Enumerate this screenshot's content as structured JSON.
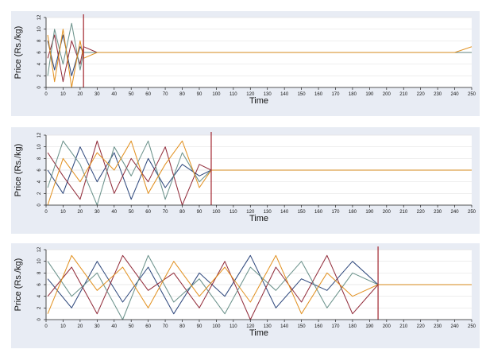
{
  "chart_data": [
    {
      "type": "line",
      "xlabel": "Time",
      "ylabel": "Price (Rs./kg)",
      "xlim": [
        0,
        250
      ],
      "ylim": [
        0,
        12
      ],
      "xticks": [
        0,
        10,
        20,
        30,
        40,
        50,
        60,
        70,
        80,
        90,
        100,
        110,
        120,
        130,
        140,
        150,
        160,
        170,
        180,
        190,
        200,
        210,
        220,
        230,
        240,
        250
      ],
      "yticks": [
        0,
        2,
        4,
        6,
        8,
        10,
        12
      ],
      "grid": "horizontal",
      "vline": {
        "x": 22,
        "color": "#a1242c"
      },
      "series": [
        {
          "color": "#1f3b73",
          "x": [
            1,
            5,
            10,
            15,
            20,
            22,
            30,
            40,
            60,
            80,
            100,
            120,
            140,
            160,
            180,
            200,
            220,
            240,
            250
          ],
          "values": [
            8,
            3,
            9,
            2,
            7,
            6,
            6,
            6,
            6,
            6,
            6,
            6,
            6,
            6,
            6,
            6,
            6,
            6,
            6
          ]
        },
        {
          "color": "#8a1d2c",
          "x": [
            1,
            5,
            10,
            15,
            20,
            22,
            30,
            40,
            60,
            80,
            100,
            120,
            140,
            160,
            180,
            200,
            220,
            240,
            250
          ],
          "values": [
            5,
            9,
            1,
            8,
            4,
            7,
            6,
            6,
            6,
            6,
            6,
            6,
            6,
            6,
            6,
            6,
            6,
            6,
            6
          ]
        },
        {
          "color": "#5f8a82",
          "x": [
            1,
            5,
            10,
            15,
            20,
            22,
            30,
            40,
            60,
            80,
            100,
            120,
            140,
            160,
            180,
            200,
            220,
            240,
            250
          ],
          "values": [
            2,
            10,
            4,
            11,
            3,
            6,
            6,
            6,
            6,
            6,
            6,
            6,
            6,
            6,
            6,
            6,
            6,
            6,
            6
          ]
        },
        {
          "color": "#e08a12",
          "x": [
            1,
            5,
            10,
            15,
            20,
            22,
            30,
            40,
            60,
            80,
            100,
            120,
            140,
            160,
            180,
            200,
            220,
            240,
            250
          ],
          "values": [
            9,
            1,
            10,
            0,
            8,
            5,
            6,
            6,
            6,
            6,
            6,
            6,
            6,
            6,
            6,
            6,
            6,
            6,
            7
          ]
        }
      ]
    },
    {
      "type": "line",
      "xlabel": "Time",
      "ylabel": "Price (Rs./kg)",
      "xlim": [
        0,
        250
      ],
      "ylim": [
        0,
        12
      ],
      "xticks": [
        0,
        10,
        20,
        30,
        40,
        50,
        60,
        70,
        80,
        90,
        100,
        110,
        120,
        130,
        140,
        150,
        160,
        170,
        180,
        190,
        200,
        210,
        220,
        230,
        240,
        250
      ],
      "yticks": [
        0,
        2,
        4,
        6,
        8,
        10,
        12
      ],
      "grid": "horizontal",
      "vline": {
        "x": 97,
        "color": "#a1242c"
      },
      "series": [
        {
          "color": "#1f3b73",
          "x": [
            1,
            10,
            20,
            30,
            40,
            50,
            60,
            70,
            80,
            90,
            97,
            100,
            110,
            130,
            150,
            170,
            190,
            210,
            230,
            250
          ],
          "values": [
            6,
            2,
            10,
            4,
            9,
            1,
            8,
            3,
            7,
            5,
            6,
            6,
            6,
            6,
            6,
            6,
            6,
            6,
            6,
            6
          ]
        },
        {
          "color": "#8a1d2c",
          "x": [
            1,
            10,
            20,
            30,
            40,
            50,
            60,
            70,
            80,
            90,
            97,
            100,
            110,
            130,
            150,
            170,
            190,
            210,
            230,
            250
          ],
          "values": [
            9,
            5,
            1,
            11,
            2,
            8,
            4,
            10,
            0,
            7,
            6,
            6,
            6,
            6,
            6,
            6,
            6,
            6,
            6,
            6
          ]
        },
        {
          "color": "#5f8a82",
          "x": [
            1,
            10,
            20,
            30,
            40,
            50,
            60,
            70,
            80,
            90,
            97,
            100,
            110,
            130,
            150,
            170,
            190,
            210,
            230,
            250
          ],
          "values": [
            3,
            11,
            7,
            0,
            10,
            5,
            11,
            1,
            9,
            4,
            6,
            6,
            6,
            6,
            6,
            6,
            6,
            6,
            6,
            6
          ]
        },
        {
          "color": "#e08a12",
          "x": [
            1,
            10,
            20,
            30,
            40,
            50,
            60,
            70,
            80,
            90,
            97,
            100,
            110,
            130,
            150,
            170,
            190,
            210,
            230,
            250
          ],
          "values": [
            0,
            8,
            4,
            9,
            6,
            11,
            2,
            7,
            11,
            3,
            6,
            6,
            6,
            6,
            6,
            6,
            6,
            6,
            6,
            6
          ]
        }
      ]
    },
    {
      "type": "line",
      "xlabel": "Time",
      "ylabel": "Price (Rs./kg)",
      "xlim": [
        0,
        250
      ],
      "ylim": [
        0,
        12
      ],
      "xticks": [
        0,
        10,
        20,
        30,
        40,
        50,
        60,
        70,
        80,
        90,
        100,
        110,
        120,
        130,
        140,
        150,
        160,
        170,
        180,
        190,
        200,
        210,
        220,
        230,
        240,
        250
      ],
      "yticks": [
        0,
        2,
        4,
        6,
        8,
        10,
        12
      ],
      "grid": "horizontal",
      "vline": {
        "x": 195,
        "color": "#a1242c"
      },
      "series": [
        {
          "color": "#1f3b73",
          "x": [
            1,
            15,
            30,
            45,
            60,
            75,
            90,
            105,
            120,
            135,
            150,
            165,
            180,
            195,
            200,
            210,
            220,
            230,
            240,
            250
          ],
          "values": [
            7,
            2,
            10,
            3,
            9,
            1,
            8,
            4,
            11,
            2,
            7,
            5,
            10,
            6,
            6,
            6,
            6,
            6,
            6,
            6
          ]
        },
        {
          "color": "#8a1d2c",
          "x": [
            1,
            15,
            30,
            45,
            60,
            75,
            90,
            105,
            120,
            135,
            150,
            165,
            180,
            195,
            200,
            210,
            220,
            230,
            240,
            250
          ],
          "values": [
            4,
            9,
            1,
            11,
            5,
            8,
            2,
            10,
            0,
            9,
            3,
            11,
            1,
            6,
            6,
            6,
            6,
            6,
            6,
            6
          ]
        },
        {
          "color": "#5f8a82",
          "x": [
            1,
            15,
            30,
            45,
            60,
            75,
            90,
            105,
            120,
            135,
            150,
            165,
            180,
            195,
            200,
            210,
            220,
            230,
            240,
            250
          ],
          "values": [
            10,
            4,
            8,
            0,
            11,
            3,
            7,
            1,
            9,
            5,
            10,
            2,
            8,
            6,
            6,
            6,
            6,
            6,
            6,
            6
          ]
        },
        {
          "color": "#e08a12",
          "x": [
            1,
            15,
            30,
            45,
            60,
            75,
            90,
            105,
            120,
            135,
            150,
            165,
            180,
            195,
            200,
            210,
            220,
            230,
            240,
            250
          ],
          "values": [
            1,
            11,
            5,
            9,
            2,
            10,
            4,
            9,
            3,
            11,
            1,
            8,
            4,
            6,
            6,
            6,
            6,
            6,
            6,
            6
          ]
        }
      ]
    }
  ]
}
